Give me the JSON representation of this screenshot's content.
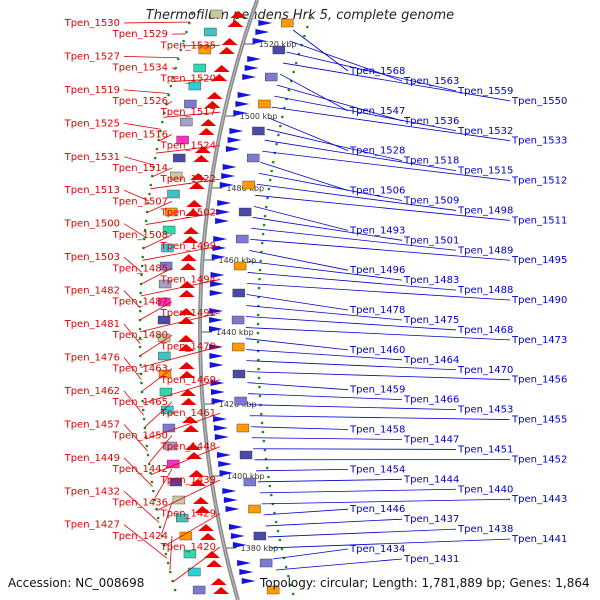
{
  "title": "Thermofilum pendens Hrk 5, complete genome",
  "accession": "Accession: NC_008698",
  "topology": "Topology: circular; Length: 1,781,889 bp; Genes: 1,864",
  "colors": {
    "left_labels": "#e00000",
    "right_labels": "#0000cc",
    "backbone": "#8c8c8c"
  },
  "kbp_ticks": [
    "1520 kbp",
    "1500 kbp",
    "1480 kbp",
    "1460 kbp",
    "1440 kbp",
    "1420 kbp",
    "1400 kbp",
    "1380 kbp"
  ],
  "left_labels": [
    "Tpen_1530",
    "Tpen_1529",
    "Tpen_1535",
    "Tpen_1527",
    "Tpen_1534",
    "Tpen_1520",
    "Tpen_1519",
    "Tpen_1526",
    "Tpen_1517",
    "Tpen_1525",
    "Tpen_1516",
    "Tpen_1524",
    "Tpen_1531",
    "Tpen_1514",
    "Tpen_1522",
    "Tpen_1513",
    "Tpen_1507",
    "Tpen_1502",
    "Tpen_1500",
    "Tpen_1508",
    "Tpen_1499",
    "Tpen_1503",
    "Tpen_1485",
    "Tpen_1494",
    "Tpen_1482",
    "Tpen_1487",
    "Tpen_1492",
    "Tpen_1481",
    "Tpen_1480",
    "Tpen_1479",
    "Tpen_1476",
    "Tpen_1463",
    "Tpen_1469",
    "Tpen_1462",
    "Tpen_1465",
    "Tpen_1461",
    "Tpen_1457",
    "Tpen_1450",
    "Tpen_1448",
    "Tpen_1449",
    "Tpen_1442",
    "Tpen_1439",
    "Tpen_1432",
    "Tpen_1436",
    "Tpen_1429",
    "Tpen_1427",
    "Tpen_1424",
    "Tpen_1420"
  ],
  "right_labels": [
    "Tpen_1568",
    "Tpen_1563",
    "Tpen_1559",
    "Tpen_1550",
    "Tpen_1547",
    "Tpen_1536",
    "Tpen_1532",
    "Tpen_1533",
    "Tpen_1528",
    "Tpen_1518",
    "Tpen_1515",
    "Tpen_1512",
    "Tpen_1506",
    "Tpen_1509",
    "Tpen_1498",
    "Tpen_1511",
    "Tpen_1493",
    "Tpen_1501",
    "Tpen_1489",
    "Tpen_1495",
    "Tpen_1496",
    "Tpen_1483",
    "Tpen_1488",
    "Tpen_1490",
    "Tpen_1478",
    "Tpen_1475",
    "Tpen_1468",
    "Tpen_1473",
    "Tpen_1460",
    "Tpen_1464",
    "Tpen_1470",
    "Tpen_1456",
    "Tpen_1459",
    "Tpen_1466",
    "Tpen_1453",
    "Tpen_1455",
    "Tpen_1458",
    "Tpen_1447",
    "Tpen_1451",
    "Tpen_1452",
    "Tpen_1454",
    "Tpen_1444",
    "Tpen_1440",
    "Tpen_1443",
    "Tpen_1446",
    "Tpen_1437",
    "Tpen_1438",
    "Tpen_1441",
    "Tpen_1434",
    "Tpen_1431"
  ]
}
